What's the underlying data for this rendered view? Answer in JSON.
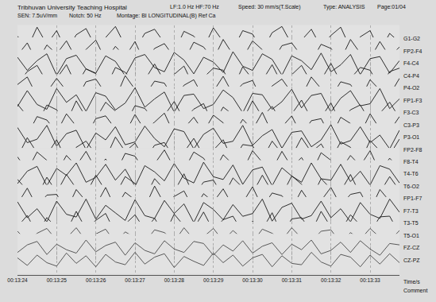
{
  "chart_data": {
    "type": "line",
    "title": "Tribhuvan University Teaching Hospital",
    "annotations": [
      "LF:1.0 Hz HF:70 Hz",
      "Speed: 30 mm/s(T.Scale)",
      "Type: ANALYSIS",
      "Page:01/04",
      "SEN: 7.5uV/mm",
      "Notch: 50 Hz",
      "Montage: BI LONGITUDINAL(B) Ref Ca",
      "Comment"
    ],
    "xlabel": "Time/s",
    "x": [
      0,
      0.25,
      0.5,
      0.75,
      1,
      1.25,
      1.5,
      1.75,
      2,
      2.25,
      2.5,
      2.75,
      3,
      3.25,
      3.5,
      3.75,
      4,
      4.25,
      4.5,
      4.75,
      5,
      5.25,
      5.5,
      5.75,
      6,
      6.25,
      6.5,
      6.75,
      7,
      7.25,
      7.5,
      7.75,
      8,
      8.25,
      8.5,
      8.75,
      9,
      9.25,
      9.5,
      9.75
    ],
    "xlim": [
      0,
      9.75
    ],
    "xticks": [
      {
        "value": 0,
        "label": "00:13:24"
      },
      {
        "value": 1,
        "label": "00:13:25"
      },
      {
        "value": 2,
        "label": "00:13:26"
      },
      {
        "value": 3,
        "label": "00:13:27"
      },
      {
        "value": 4,
        "label": "00:13:28"
      },
      {
        "value": 5,
        "label": "00:13:29"
      },
      {
        "value": 6,
        "label": "00:13:30"
      },
      {
        "value": 7,
        "label": "00:13:31"
      },
      {
        "value": 8,
        "label": "00:13:32"
      },
      {
        "value": 9,
        "label": "00:13:33"
      }
    ],
    "ylim": [
      -100,
      100
    ],
    "grid": true,
    "tick_labels": "x",
    "series": [
      {
        "name": "G1-G2",
        "color": "#1a1a1a",
        "values": [
          20,
          -70,
          85,
          -40,
          60,
          -90,
          30,
          75,
          -60,
          10,
          90,
          -50,
          -80,
          40,
          70,
          -30,
          -95,
          55,
          20,
          -65,
          80,
          -20,
          -75,
          60,
          35,
          -85,
          45,
          90,
          -40,
          -10,
          70,
          -60,
          25,
          85,
          -70,
          15,
          60,
          -90,
          40,
          -25
        ]
      },
      {
        "name": "FP2-F4",
        "color": "#1a1a1a",
        "values": [
          -30,
          60,
          -80,
          45,
          -20,
          75,
          -55,
          10,
          80,
          -65,
          35,
          -40,
          70,
          -85,
          20,
          55,
          -45,
          -70,
          65,
          30,
          -60,
          85,
          -25,
          -50,
          75,
          10,
          -80,
          40,
          60,
          -35,
          -75,
          50,
          20,
          -60,
          85,
          -15,
          -55,
          70,
          -40,
          30
        ]
      },
      {
        "name": "F4-C4",
        "color": "#1a1a1a",
        "values": [
          45,
          -50,
          20,
          70,
          -85,
          35,
          60,
          -40,
          -70,
          55,
          15,
          -90,
          40,
          65,
          -30,
          -60,
          80,
          25,
          -75,
          45,
          10,
          -65,
          85,
          -20,
          -50,
          70,
          30,
          -85,
          55,
          20,
          -45,
          75,
          -60,
          -10,
          65,
          -80,
          35,
          50,
          -70,
          20
        ]
      },
      {
        "name": "C4-P4",
        "color": "#1a1a1a",
        "values": [
          -60,
          30,
          75,
          -45,
          -20,
          80,
          -70,
          50,
          15,
          -85,
          60,
          25,
          -55,
          -30,
          85,
          -40,
          10,
          70,
          -80,
          -15,
          55,
          40,
          -90,
          65,
          -25,
          -35,
          80,
          -60,
          5,
          75,
          -50,
          -30,
          90,
          -45,
          -20,
          60,
          40,
          -85,
          30,
          55
        ]
      },
      {
        "name": "P4-O2",
        "color": "#1a1a1a",
        "values": [
          25,
          80,
          -60,
          -30,
          70,
          -20,
          -85,
          45,
          65,
          -40,
          -75,
          90,
          -10,
          -55,
          50,
          35,
          -80,
          20,
          60,
          -70,
          -25,
          85,
          -45,
          30,
          55,
          -90,
          15,
          65,
          -35,
          -60,
          80,
          -5,
          -70,
          45,
          25,
          -80,
          60,
          -15,
          -50,
          70
        ]
      },
      {
        "name": "FP1-F3",
        "color": "#1a1a1a",
        "values": [
          -45,
          70,
          -30,
          -65,
          85,
          -15,
          40,
          -80,
          55,
          30,
          -70,
          -20,
          90,
          -50,
          10,
          60,
          -85,
          35,
          45,
          -60,
          -30,
          75,
          20,
          -90,
          50,
          40,
          -65,
          -10,
          80,
          -55,
          35,
          50,
          -85,
          15,
          70,
          -40,
          -25,
          85,
          -60,
          10
        ]
      },
      {
        "name": "F3-C3",
        "color": "#1a1a1a",
        "values": [
          60,
          -25,
          -80,
          55,
          20,
          -70,
          85,
          -35,
          -45,
          75,
          10,
          -85,
          50,
          30,
          -60,
          -20,
          80,
          -50,
          25,
          65,
          -90,
          40,
          -15,
          -55,
          85,
          -30,
          45,
          -70,
          -10,
          90,
          -45,
          -35,
          70,
          -80,
          20,
          55,
          -65,
          -5,
          75,
          -40
        ]
      },
      {
        "name": "C3-P3",
        "color": "#1a1a1a",
        "values": [
          -20,
          -75,
          60,
          35,
          -55,
          80,
          -10,
          -85,
          45,
          65,
          -30,
          -60,
          75,
          -40,
          20,
          85,
          -70,
          -25,
          55,
          -50,
          70,
          15,
          -80,
          40,
          -35,
          90,
          -60,
          -15,
          65,
          -75,
          30,
          45,
          -90,
          55,
          10,
          -65,
          80,
          -30,
          -45,
          60
        ]
      },
      {
        "name": "P3-O1",
        "color": "#1a1a1a",
        "values": [
          70,
          -40,
          -15,
          85,
          -65,
          25,
          50,
          -90,
          30,
          -20,
          75,
          -55,
          -35,
          80,
          -10,
          -70,
          60,
          40,
          -85,
          20,
          65,
          -45,
          -30,
          85,
          -60,
          10,
          55,
          -80,
          35,
          45,
          -70,
          -20,
          90,
          -50,
          -25,
          75,
          -40,
          15,
          -85,
          50
        ]
      },
      {
        "name": "FP2-F8",
        "color": "#1a1a1a",
        "values": [
          -55,
          85,
          -25,
          -40,
          70,
          -80,
          15,
          60,
          -35,
          -65,
          90,
          -15,
          45,
          -75,
          30,
          50,
          -60,
          -20,
          80,
          -45,
          -5,
          70,
          -85,
          35,
          25,
          -70,
          60,
          -30,
          -50,
          85,
          -20,
          40,
          -75,
          55,
          15,
          -90,
          65,
          -10,
          -40,
          75
        ]
      },
      {
        "name": "F8-T4",
        "color": "#1a1a1a",
        "values": [
          35,
          -65,
          70,
          10,
          -80,
          45,
          -30,
          75,
          -55,
          20,
          -85,
          60,
          40,
          -70,
          -15,
          85,
          -45,
          -60,
          70,
          25,
          -80,
          50,
          -20,
          -65,
          80,
          -5,
          -55,
          75,
          -40,
          30,
          -85,
          65,
          10,
          -60,
          45,
          -30,
          80,
          -75,
          25,
          -50
        ]
      },
      {
        "name": "T4-T6",
        "color": "#1a1a1a",
        "values": [
          -70,
          20,
          55,
          -85,
          40,
          -10,
          80,
          -60,
          -25,
          70,
          -45,
          35,
          -90,
          60,
          15,
          -50,
          75,
          -30,
          -65,
          85,
          -20,
          -40,
          65,
          -75,
          30,
          50,
          -85,
          45,
          -15,
          -60,
          80,
          -35,
          -45,
          70,
          -55,
          20,
          -80,
          60,
          35,
          -65
        ]
      },
      {
        "name": "T6-O2",
        "color": "#1a1a1a",
        "values": [
          50,
          -30,
          -70,
          65,
          -45,
          85,
          -15,
          -55,
          80,
          -35,
          -60,
          70,
          20,
          -85,
          55,
          -25,
          -40,
          90,
          -70,
          30,
          45,
          -75,
          60,
          -10,
          -50,
          80,
          -40,
          -65,
          75,
          15,
          -90,
          55,
          -20,
          -35,
          85,
          -60,
          10,
          -45,
          70,
          -30
        ]
      },
      {
        "name": "FP1-F7",
        "color": "#1a1a1a",
        "values": [
          -40,
          75,
          -60,
          25,
          30,
          -85,
          65,
          -20,
          -50,
          80,
          -70,
          45,
          -10,
          -65,
          90,
          -40,
          15,
          55,
          -80,
          35,
          -25,
          70,
          -55,
          -30,
          85,
          -65,
          40,
          20,
          -75,
          60,
          -45,
          -15,
          80,
          -50,
          30,
          45,
          -85,
          65,
          -20,
          -40
        ]
      },
      {
        "name": "F7-T3",
        "color": "#1a1a1a",
        "values": [
          65,
          -50,
          15,
          -80,
          70,
          -25,
          -45,
          85,
          -60,
          40,
          -15,
          -70,
          80,
          -35,
          -55,
          75,
          -20,
          50,
          -85,
          60,
          10,
          -65,
          45,
          -40,
          -20,
          85,
          -75,
          25,
          55,
          -60,
          -35,
          70,
          -50,
          15,
          -80,
          60,
          -25,
          -55,
          85,
          -10
        ]
      },
      {
        "name": "T3-T5",
        "color": "#1a1a1a",
        "values": [
          -25,
          55,
          -80,
          40,
          -35,
          -60,
          85,
          -45,
          20,
          70,
          -75,
          -5,
          60,
          -50,
          35,
          -85,
          65,
          -20,
          -40,
          80,
          -55,
          25,
          50,
          -70,
          15,
          -45,
          75,
          -85,
          30,
          40,
          -65,
          85,
          -30,
          -55,
          60,
          -15,
          -70,
          45,
          50,
          -80
        ]
      },
      {
        "name": "T5-O1",
        "color": "#4a4a4a",
        "values": [
          30,
          -45,
          15,
          50,
          -35,
          -20,
          55,
          -40,
          10,
          45,
          -55,
          25,
          -15,
          -50,
          40,
          20,
          -45,
          55,
          -30,
          -10,
          50,
          -40,
          35,
          -25,
          -50,
          45,
          15,
          -35,
          55,
          -20,
          -45,
          30,
          40,
          -55,
          20,
          -30,
          50,
          -15,
          -40,
          35
        ]
      },
      {
        "name": "FZ-CZ",
        "color": "#4a4a4a",
        "values": [
          -35,
          20,
          45,
          -50,
          25,
          -15,
          -40,
          55,
          -30,
          15,
          40,
          -55,
          35,
          -20,
          -45,
          50,
          -10,
          -35,
          45,
          30,
          -55,
          20,
          -25,
          50,
          -40,
          10,
          35,
          -50,
          25,
          -15,
          55,
          -45,
          -20,
          40,
          -35,
          50,
          -10,
          -55,
          30,
          20
        ]
      },
      {
        "name": "CZ-PZ",
        "color": "#4a4a4a",
        "values": [
          15,
          -40,
          35,
          -20,
          -45,
          50,
          -25,
          30,
          -50,
          40,
          -15,
          -35,
          55,
          -30,
          20,
          45,
          -55,
          25,
          -10,
          -40,
          50,
          -20,
          35,
          -45,
          15,
          40,
          -50,
          30,
          -25,
          -35,
          55,
          -15,
          -45,
          40,
          20,
          -50,
          35,
          -30,
          45,
          -20
        ]
      }
    ]
  }
}
